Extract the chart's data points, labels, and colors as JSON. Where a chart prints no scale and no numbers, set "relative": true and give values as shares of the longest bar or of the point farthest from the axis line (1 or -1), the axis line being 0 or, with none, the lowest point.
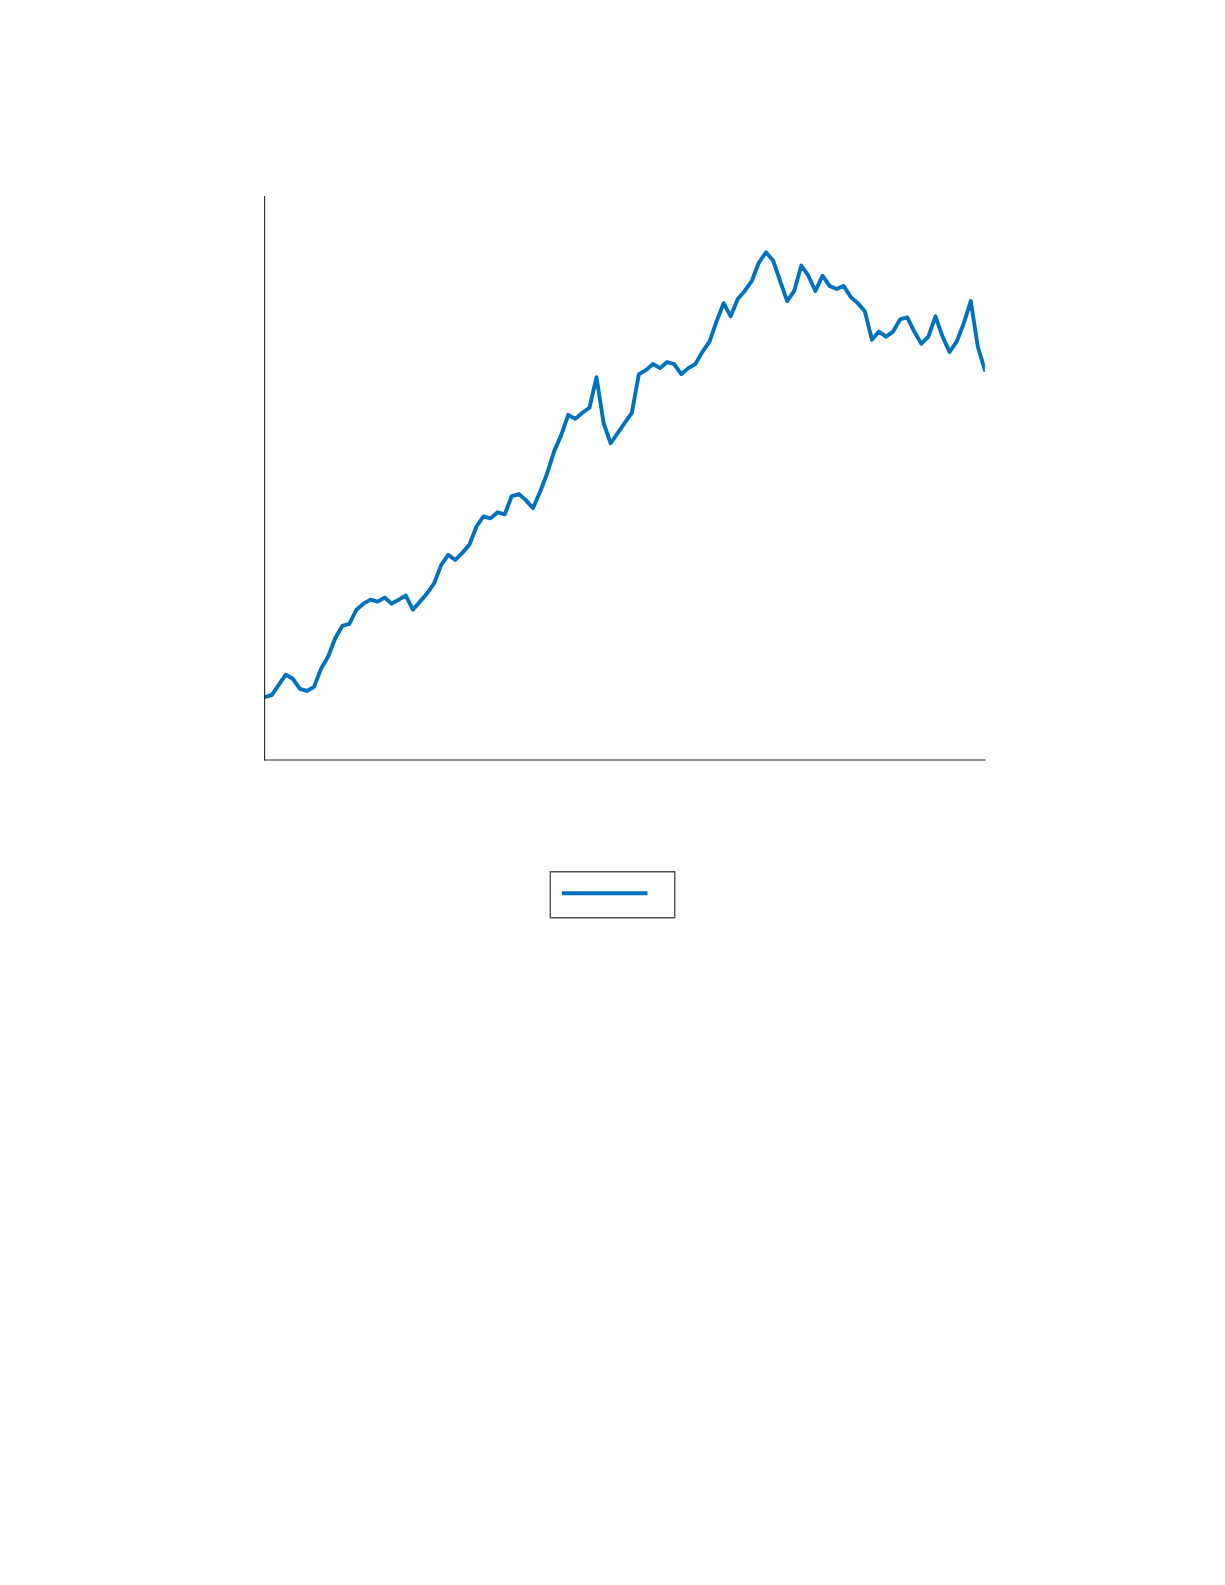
{
  "chart_data": {
    "type": "line",
    "relative": true,
    "grid": false,
    "categories": [
      null,
      null,
      null,
      null,
      null,
      null,
      null,
      null,
      null,
      null,
      null,
      null,
      null,
      null,
      null,
      null,
      null,
      null,
      null,
      null,
      null,
      null,
      null,
      null,
      null,
      null,
      null,
      null,
      null,
      null,
      null,
      null,
      null,
      null,
      null,
      null,
      null,
      null,
      null,
      null,
      null,
      null,
      null,
      null,
      null,
      null,
      null,
      null,
      null,
      null,
      null,
      null,
      null,
      null,
      null,
      null,
      null,
      null,
      null,
      null,
      null,
      null,
      null,
      null,
      null,
      null,
      null,
      null,
      null,
      null,
      null,
      null,
      null,
      null,
      null,
      null,
      null,
      null,
      null,
      null,
      null,
      null,
      null,
      null,
      null,
      null,
      null,
      null,
      null,
      null,
      null,
      null,
      null,
      null,
      null,
      null,
      null,
      null,
      null,
      null,
      null,
      null,
      null
    ],
    "series": [
      {
        "color": "#0072bd",
        "values": [
          0.124,
          0.128,
          0.148,
          0.168,
          0.16,
          0.14,
          0.136,
          0.144,
          0.18,
          0.204,
          0.24,
          0.264,
          0.268,
          0.296,
          0.308,
          0.316,
          0.312,
          0.32,
          0.308,
          0.316,
          0.324,
          0.296,
          0.312,
          0.328,
          0.348,
          0.384,
          0.404,
          0.394,
          0.408,
          0.424,
          0.46,
          0.48,
          0.476,
          0.488,
          0.484,
          0.52,
          0.524,
          0.512,
          0.496,
          0.528,
          0.564,
          0.608,
          0.64,
          0.68,
          0.672,
          0.684,
          0.694,
          0.754,
          0.664,
          0.624,
          0.644,
          0.664,
          0.684,
          0.76,
          0.768,
          0.78,
          0.772,
          0.784,
          0.78,
          0.76,
          0.772,
          0.78,
          0.804,
          0.824,
          0.864,
          0.9,
          0.874,
          0.908,
          0.924,
          0.944,
          0.98,
          1,
          0.984,
          0.944,
          0.904,
          0.924,
          0.974,
          0.954,
          0.924,
          0.954,
          0.934,
          0.928,
          0.934,
          0.912,
          0.9,
          0.884,
          0.828,
          0.844,
          0.834,
          0.844,
          0.868,
          0.872,
          0.844,
          0.82,
          0.834,
          0.874,
          0.834,
          0.804,
          0.824,
          0.86,
          0.904,
          0.814,
          0.768
        ]
      }
    ]
  }
}
